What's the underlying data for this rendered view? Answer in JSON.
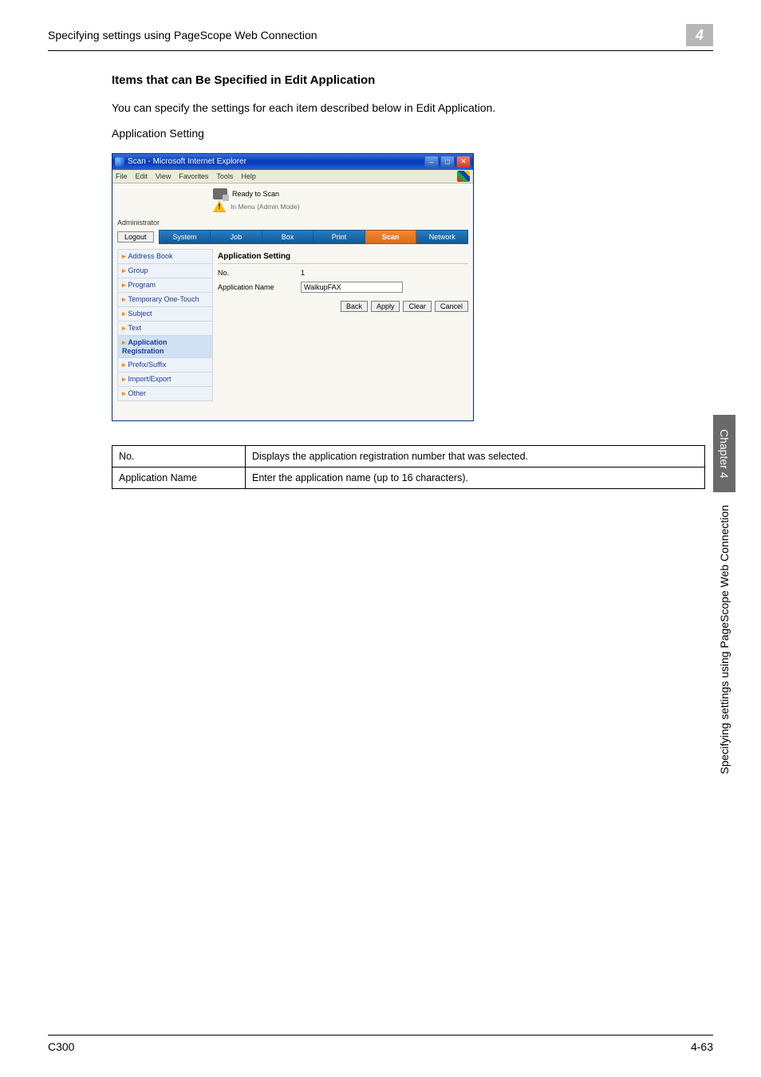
{
  "header": {
    "title": "Specifying settings using PageScope Web Connection",
    "chapter_number": "4"
  },
  "section": {
    "title": "Items that can Be Specified in Edit Application",
    "intro": "You can specify the settings for each item described below in Edit Application.",
    "sub": "Application Setting"
  },
  "browser": {
    "window_title": "Scan - Microsoft Internet Explorer",
    "menu": {
      "file": "File",
      "edit": "Edit",
      "view": "View",
      "favorites": "Favorites",
      "tools": "Tools",
      "help": "Help"
    },
    "status": "Ready to Scan",
    "in_menu": "In Menu (Admin Mode)",
    "role": "Administrator",
    "logout": "Logout",
    "tabs": {
      "system": "System",
      "job": "Job",
      "box": "Box",
      "print": "Print",
      "scan": "Scan",
      "network": "Network"
    },
    "sidebar": {
      "items": [
        "Address Book",
        "Group",
        "Program",
        "Temporary One-Touch",
        "Subject",
        "Text",
        "Application Registration",
        "Prefix/Suffix",
        "Import/Export",
        "Other"
      ],
      "selected_index": 6
    },
    "panel": {
      "title": "Application Setting",
      "row1_label": "No.",
      "row1_value": "1",
      "row2_label": "Application Name",
      "row2_value": "WalkupFAX",
      "buttons": {
        "back": "Back",
        "apply": "Apply",
        "clear": "Clear",
        "cancel": "Cancel"
      }
    }
  },
  "desc_table": {
    "rows": [
      {
        "k": "No.",
        "v": "Displays the application registration number that was selected."
      },
      {
        "k": "Application Name",
        "v": "Enter the application name (up to 16 characters)."
      }
    ]
  },
  "side_tab": {
    "chapter": "Chapter 4",
    "text": "Specifying settings using PageScope Web Connection"
  },
  "footer": {
    "left": "C300",
    "right": "4-63"
  },
  "colors": {
    "titlebar": "#0a3ec1",
    "tab_active": "#e06a16",
    "tab_inactive": "#0f5a9a",
    "side_sel": "#cfe1f3",
    "gray_chap": "#b7b7b7",
    "side_chap_bg": "#6a6a6a"
  }
}
